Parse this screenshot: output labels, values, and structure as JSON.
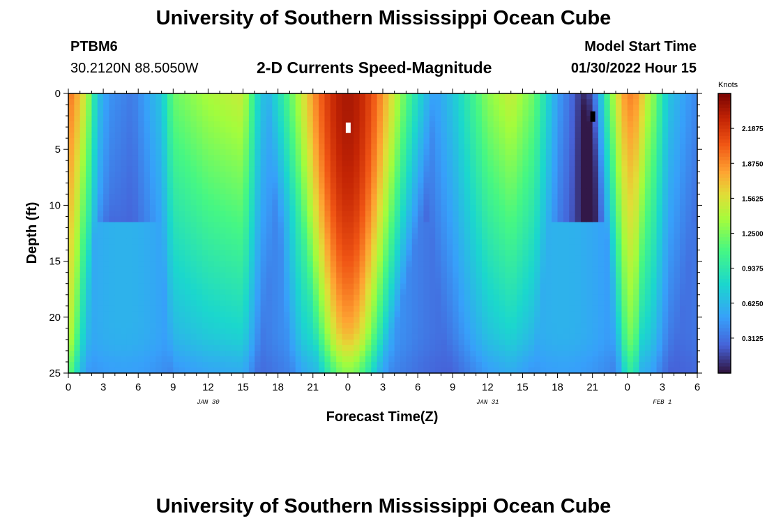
{
  "header": {
    "title": "University of Southern Mississippi Ocean Cube",
    "station": "PTBM6",
    "coords": "30.2120N  88.5050W",
    "subtitle": "2-D Currents Speed-Magnitude",
    "start_label": "Model Start Time",
    "start_value": "01/30/2022 Hour 15"
  },
  "footer": {
    "title": "University of Southern Mississippi Ocean Cube"
  },
  "chart_data": {
    "type": "heatmap",
    "title": "2-D Currents Speed-Magnitude",
    "xlabel": "Forecast Time(Z)",
    "ylabel": "Depth (ft)",
    "x_ticks": [
      "0",
      "3",
      "6",
      "9",
      "12",
      "15",
      "18",
      "21",
      "0",
      "3",
      "6",
      "9",
      "12",
      "15",
      "18",
      "21",
      "0",
      "3",
      "6"
    ],
    "x_range_hours": [
      0,
      54
    ],
    "y_ticks": [
      "0",
      "5",
      "10",
      "15",
      "20",
      "25"
    ],
    "y_range_ft": [
      0,
      25
    ],
    "date_labels": [
      {
        "text": "JAN 30",
        "hour": 12
      },
      {
        "text": "JAN 31",
        "hour": 36
      },
      {
        "text": "FEB 1",
        "hour": 51
      }
    ],
    "colorbar": {
      "title": "Knots",
      "min": 0,
      "max": 2.5,
      "tick_labels": [
        "2.1875",
        "1.8750",
        "1.5625",
        "1.2500",
        "0.9375",
        "0.6250",
        "0.3125"
      ],
      "tick_values": [
        2.1875,
        1.875,
        1.5625,
        1.25,
        0.9375,
        0.625,
        0.3125
      ]
    },
    "surface_speed_knots": [
      {
        "hour": 0,
        "v": 2.0
      },
      {
        "hour": 1.5,
        "v": 1.5
      },
      {
        "hour": 2.5,
        "v": 0.7
      },
      {
        "hour": 3.5,
        "v": 0.45
      },
      {
        "hour": 5.5,
        "v": 0.35
      },
      {
        "hour": 8,
        "v": 0.7
      },
      {
        "hour": 9,
        "v": 1.2
      },
      {
        "hour": 12,
        "v": 1.4
      },
      {
        "hour": 15,
        "v": 1.5
      },
      {
        "hour": 16.5,
        "v": 0.7
      },
      {
        "hour": 18,
        "v": 0.5
      },
      {
        "hour": 20,
        "v": 1.4
      },
      {
        "hour": 24,
        "v": 2.3
      },
      {
        "hour": 27,
        "v": 1.4
      },
      {
        "hour": 29,
        "v": 0.5
      },
      {
        "hour": 30.5,
        "v": 0.35
      },
      {
        "hour": 33,
        "v": 0.7
      },
      {
        "hour": 36,
        "v": 1.3
      },
      {
        "hour": 38,
        "v": 1.5
      },
      {
        "hour": 40,
        "v": 1.2
      },
      {
        "hour": 42,
        "v": 0.5
      },
      {
        "hour": 44,
        "v": 0.15
      },
      {
        "hour": 45,
        "v": 0.12
      },
      {
        "hour": 46,
        "v": 0.5
      },
      {
        "hour": 47.5,
        "v": 1.5
      },
      {
        "hour": 48,
        "v": 1.8
      },
      {
        "hour": 50,
        "v": 1.4
      },
      {
        "hour": 51.5,
        "v": 0.7
      },
      {
        "hour": 53,
        "v": 0.5
      },
      {
        "hour": 54,
        "v": 0.4
      }
    ]
  }
}
